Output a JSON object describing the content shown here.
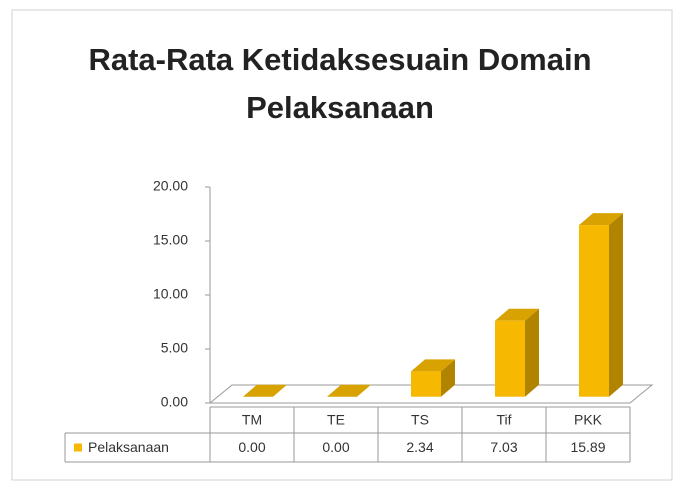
{
  "chart_data": {
    "type": "bar3d",
    "title": "Rata-Rata Ketidaksesuain Domain Pelaksanaan",
    "categories": [
      "TM",
      "TE",
      "TS",
      "Tif",
      "PKK"
    ],
    "series": [
      {
        "name": "Pelaksanaan",
        "color": "#f6b800",
        "values": [
          0,
          0,
          2.34,
          7.03,
          15.89
        ],
        "value_labels": [
          "0.00",
          "0.00",
          "2.34",
          "7.03",
          "15.89"
        ]
      }
    ],
    "ylim": [
      0,
      20
    ],
    "yticks": [
      {
        "value": 0,
        "label": "0.00"
      },
      {
        "value": 5,
        "label": "5.00"
      },
      {
        "value": 10,
        "label": "10.00"
      },
      {
        "value": 15,
        "label": "15.00"
      },
      {
        "value": 20,
        "label": "20.00"
      }
    ],
    "grid": false,
    "data_table": true
  }
}
